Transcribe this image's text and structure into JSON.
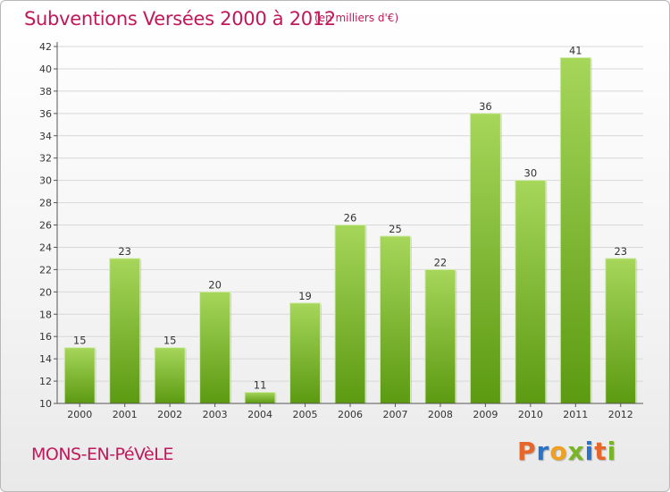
{
  "header": {
    "title": "Subventions Versées 2000 à 2012",
    "unit": "(en milliers d'€)"
  },
  "footer": {
    "city": "MONS-EN-PéVèLE",
    "brand": {
      "letters": [
        {
          "char": "P",
          "color": "#e8662a"
        },
        {
          "char": "r",
          "color": "#2b73c8"
        },
        {
          "char": "o",
          "color": "#f0a020"
        },
        {
          "char": "x",
          "color": "#7ab528"
        },
        {
          "char": "i",
          "color": "#2b73c8"
        },
        {
          "char": "t",
          "color": "#e8662a"
        },
        {
          "char": "i",
          "color": "#7ab528"
        }
      ]
    }
  },
  "colors": {
    "bar_light": "#a6d65a",
    "bar_dark": "#5c9a12",
    "grid": "#d8d8d8",
    "accent": "#c0185a"
  },
  "chart_data": {
    "type": "bar",
    "title": "Subventions Versées 2000 à 2012",
    "subtitle": "(en milliers d'€)",
    "xlabel": "",
    "ylabel": "",
    "categories": [
      "2000",
      "2001",
      "2002",
      "2003",
      "2004",
      "2005",
      "2006",
      "2007",
      "2008",
      "2009",
      "2010",
      "2011",
      "2012"
    ],
    "values": [
      15,
      23,
      15,
      20,
      11,
      19,
      26,
      25,
      22,
      36,
      30,
      41,
      23
    ],
    "ylim": [
      10,
      42
    ],
    "yticks": [
      10,
      12,
      14,
      16,
      18,
      20,
      22,
      24,
      26,
      28,
      30,
      32,
      34,
      36,
      38,
      40,
      42
    ],
    "grid": true,
    "legend": "none"
  }
}
